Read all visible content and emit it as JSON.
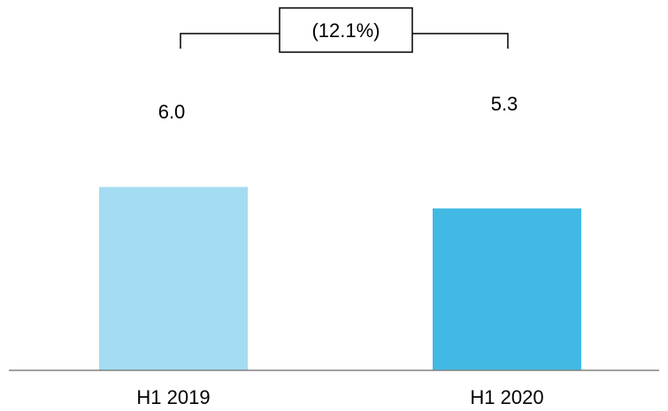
{
  "chart_data": {
    "type": "bar",
    "categories": [
      "H1 2019",
      "H1 2020"
    ],
    "values": [
      6.0,
      5.3
    ],
    "value_labels": [
      "6.0",
      "5.3"
    ],
    "bar_colors": [
      "#a3dcf1",
      "#42b9e4"
    ],
    "axis_color": "#808080",
    "bracket_label": "(12.1%)",
    "title": "",
    "xlabel": "",
    "ylabel": "",
    "ylim": [
      0,
      9.4
    ],
    "grid": false,
    "legend": false
  }
}
